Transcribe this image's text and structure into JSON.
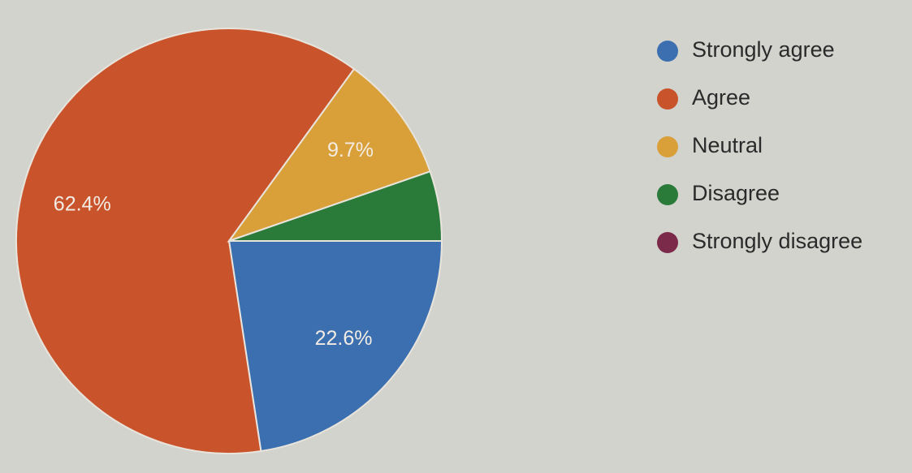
{
  "chart_data": {
    "type": "pie",
    "categories": [
      "Strongly agree",
      "Agree",
      "Neutral",
      "Disagree",
      "Strongly disagree"
    ],
    "values": [
      22.6,
      62.4,
      9.7,
      5.3,
      0
    ],
    "value_labels": [
      "22.6%",
      "62.4%",
      "9.7%",
      null,
      null
    ],
    "colors": [
      "#3c6fb0",
      "#c9532b",
      "#d9a03a",
      "#2a7a3a",
      "#7b2a4a"
    ],
    "start_angle": 90,
    "legend": "right"
  }
}
